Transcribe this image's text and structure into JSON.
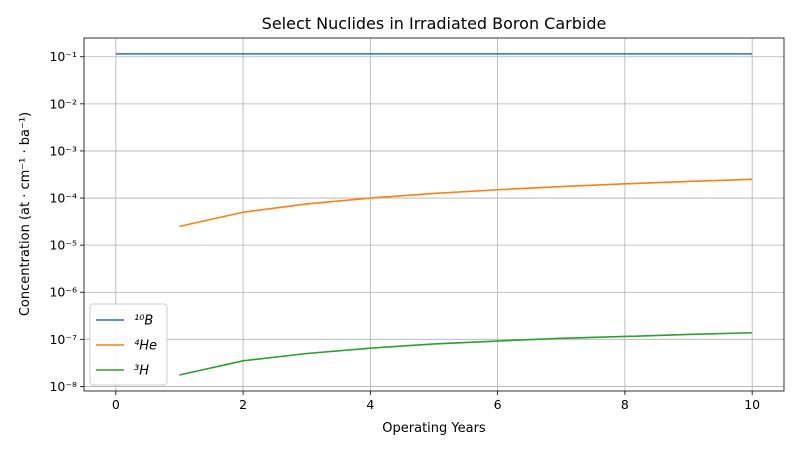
{
  "chart_data": {
    "type": "line",
    "title": "Select Nuclides in Irradiated Boron Carbide",
    "xlabel": "Operating Years",
    "ylabel": "Concentration (at · cm⁻¹ · ba⁻¹)",
    "y_scale": "log",
    "xlim": [
      -0.5,
      10.5
    ],
    "ylim": [
      8e-09,
      0.25
    ],
    "x_ticks": [
      0,
      2,
      4,
      6,
      8,
      10
    ],
    "y_ticks": [
      1e-08,
      1e-07,
      1e-06,
      1e-05,
      0.0001,
      0.001,
      0.01,
      0.1
    ],
    "y_tick_labels": [
      "10⁻⁸",
      "10⁻⁷",
      "10⁻⁶",
      "10⁻⁵",
      "10⁻⁴",
      "10⁻³",
      "10⁻²",
      "10⁻¹"
    ],
    "grid": true,
    "legend_position": "lower-left",
    "series": [
      {
        "name": "¹⁰B",
        "color": "#1f77b4",
        "x": [
          0,
          1,
          2,
          3,
          4,
          5,
          6,
          7,
          8,
          9,
          10
        ],
        "values": [
          0.115,
          0.115,
          0.115,
          0.115,
          0.115,
          0.115,
          0.115,
          0.115,
          0.115,
          0.115,
          0.115
        ]
      },
      {
        "name": "⁴He",
        "color": "#ff7f0e",
        "x": [
          1,
          2,
          3,
          4,
          5,
          6,
          7,
          8,
          9,
          10
        ],
        "values": [
          2.5e-05,
          5e-05,
          7.5e-05,
          0.0001,
          0.000125,
          0.00015,
          0.000175,
          0.0002,
          0.000225,
          0.00025
        ]
      },
      {
        "name": "³H",
        "color": "#2ca02c",
        "x": [
          1,
          2,
          3,
          4,
          5,
          6,
          7,
          8,
          9,
          10
        ],
        "values": [
          1.75e-08,
          3.5e-08,
          5e-08,
          6.5e-08,
          8e-08,
          9.2e-08,
          1.05e-07,
          1.15e-07,
          1.27e-07,
          1.38e-07
        ]
      }
    ]
  }
}
